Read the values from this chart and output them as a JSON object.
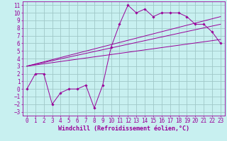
{
  "xlabel": "Windchill (Refroidissement éolien,°C)",
  "bg_color": "#c8f0f0",
  "grid_color": "#a0c8c8",
  "line_color": "#990099",
  "xlim": [
    -0.5,
    23.5
  ],
  "ylim": [
    -3.5,
    11.5
  ],
  "xticks": [
    0,
    1,
    2,
    3,
    4,
    5,
    6,
    7,
    8,
    9,
    10,
    11,
    12,
    13,
    14,
    15,
    16,
    17,
    18,
    19,
    20,
    21,
    22,
    23
  ],
  "yticks": [
    -3,
    -2,
    -1,
    0,
    1,
    2,
    3,
    4,
    5,
    6,
    7,
    8,
    9,
    10,
    11
  ],
  "data_x": [
    0,
    1,
    2,
    3,
    4,
    5,
    6,
    7,
    8,
    9,
    10,
    11,
    12,
    13,
    14,
    15,
    16,
    17,
    18,
    19,
    20,
    21,
    22,
    23
  ],
  "data_y": [
    0,
    2,
    2,
    -2,
    -0.5,
    0,
    0,
    0.5,
    -2.5,
    0.5,
    5.5,
    8.5,
    11,
    10,
    10.5,
    9.5,
    10,
    10,
    10,
    9.5,
    8.5,
    8.5,
    7.5,
    6
  ],
  "trend_lines": [
    {
      "x": [
        0,
        23
      ],
      "y": [
        3,
        8.5
      ]
    },
    {
      "x": [
        0,
        23
      ],
      "y": [
        3,
        6.5
      ]
    },
    {
      "x": [
        0,
        23
      ],
      "y": [
        3,
        9.5
      ]
    }
  ],
  "tick_fontsize": 5.5,
  "label_fontsize": 6.0
}
